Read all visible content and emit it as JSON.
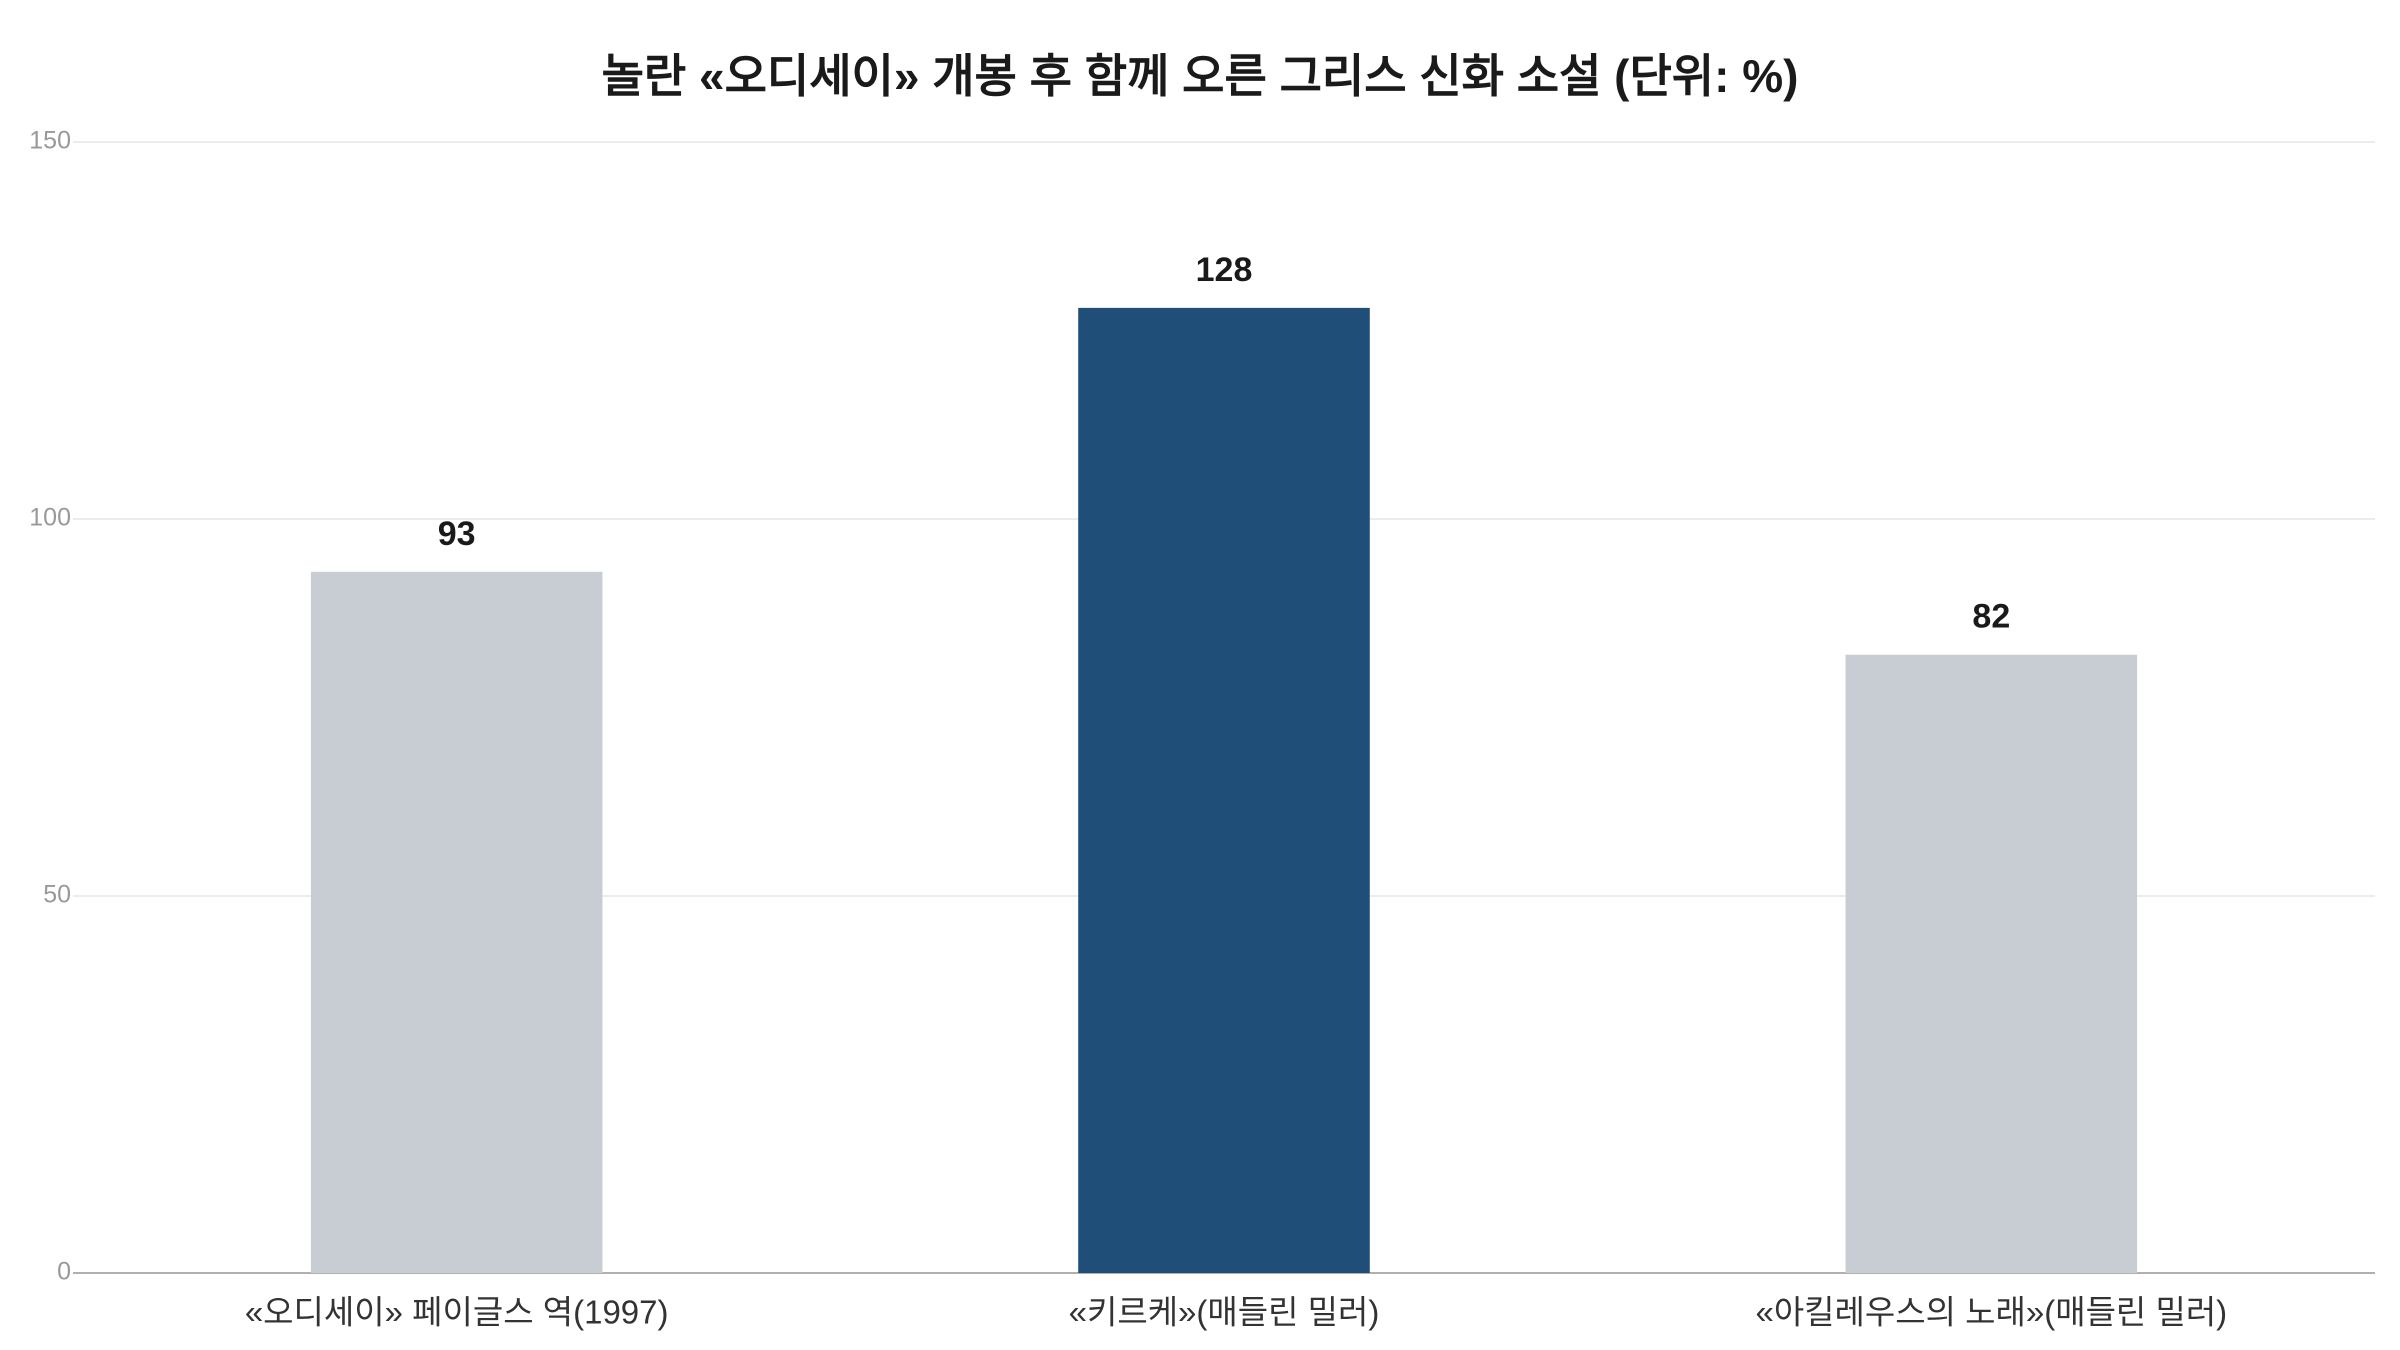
{
  "chart_data": {
    "type": "bar",
    "title": "놀란 «오디세이» 개봉 후 함께 오른 그리스 신화 소설 (단위: %)",
    "categories": [
      "«오디세이» 페이글스 역(1997)",
      "«키르케»(매들린 밀러)",
      "«아킬레우스의 노래»(매들린 밀러)"
    ],
    "values": [
      93,
      128,
      82
    ],
    "colors": [
      "#c8ccd3",
      "#1f4e79",
      "#c8ccd3"
    ],
    "ylim": [
      0,
      150
    ],
    "yticks": [
      0,
      50,
      100,
      150
    ],
    "grid": true
  }
}
